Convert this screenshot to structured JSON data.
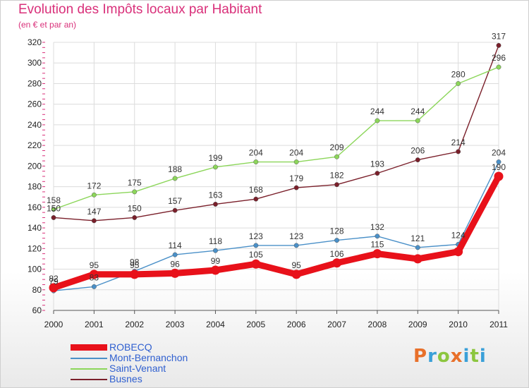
{
  "title": "Evolution des Impôts locaux par Habitant",
  "subtitle": "(en € et par an)",
  "logo": {
    "text": "Proxiti",
    "colors": [
      "#e8702a",
      "#3aa0d8",
      "#8cc63f",
      "#e8702a",
      "#3aa0d8",
      "#8cc63f",
      "#3aa0d8"
    ]
  },
  "chart_data": {
    "type": "line",
    "title": "Evolution des Impôts locaux par Habitant",
    "subtitle": "(en € et par an)",
    "xlabel": "",
    "ylabel": "",
    "categories": [
      "2000",
      "2001",
      "2002",
      "2003",
      "2004",
      "2005",
      "2006",
      "2007",
      "2008",
      "2009",
      "2010",
      "2011"
    ],
    "ylim": [
      60,
      320
    ],
    "yticks": [
      60,
      80,
      100,
      120,
      140,
      160,
      180,
      200,
      220,
      240,
      260,
      280,
      300,
      320
    ],
    "grid": true,
    "legend_position": "bottom-left",
    "series": [
      {
        "name": "ROBECQ",
        "color": "#e8111a",
        "values": [
          82,
          95,
          95,
          96,
          99,
          105,
          95,
          106,
          115,
          110,
          117,
          190
        ],
        "labels": [
          "82",
          "95",
          "95",
          "96",
          "99",
          "105",
          "95",
          "106",
          "115",
          "",
          "",
          "190"
        ]
      },
      {
        "name": "Mont-Bernanchon",
        "color": "#4a90c8",
        "values": [
          79,
          83,
          98,
          114,
          118,
          123,
          123,
          128,
          132,
          121,
          124,
          204
        ],
        "labels": [
          "79",
          "83",
          "98",
          "114",
          "118",
          "123",
          "123",
          "128",
          "132",
          "121",
          "124",
          "204"
        ]
      },
      {
        "name": "Saint-Venant",
        "color": "#8cd65a",
        "values": [
          158,
          172,
          175,
          188,
          199,
          204,
          204,
          209,
          244,
          244,
          280,
          296
        ],
        "labels": [
          "158",
          "172",
          "175",
          "188",
          "199",
          "204",
          "204",
          "209",
          "244",
          "244",
          "280",
          "296"
        ]
      },
      {
        "name": "Busnes",
        "color": "#7a1f2a",
        "values": [
          150,
          147,
          150,
          157,
          163,
          168,
          179,
          182,
          193,
          206,
          214,
          317
        ],
        "labels": [
          "150",
          "147",
          "150",
          "157",
          "163",
          "168",
          "179",
          "182",
          "193",
          "206",
          "214",
          "317"
        ]
      }
    ]
  }
}
